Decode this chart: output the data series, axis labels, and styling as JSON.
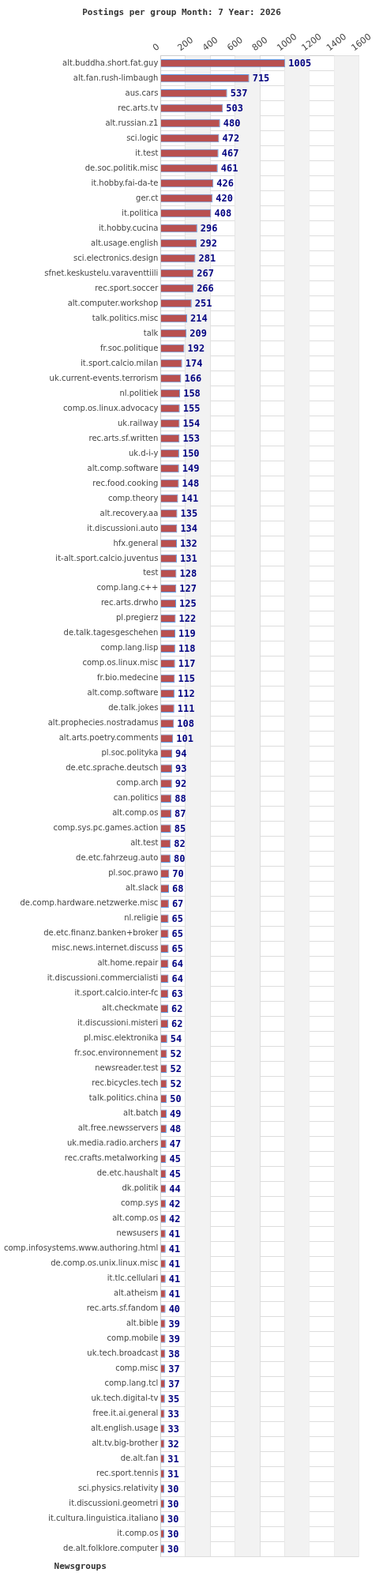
{
  "chart_data": {
    "type": "bar",
    "orientation": "horizontal",
    "title": "Postings per group Month: 7 Year: 2026",
    "ylabel": "Newsgroups",
    "categories": [
      "alt.buddha.short.fat.guy",
      "alt.fan.rush-limbaugh",
      "aus.cars",
      "rec.arts.tv",
      "alt.russian.z1",
      "sci.logic",
      "it.test",
      "de.soc.politik.misc",
      "it.hobby.fai-da-te",
      "ger.ct",
      "it.politica",
      "it.hobby.cucina",
      "alt.usage.english",
      "sci.electronics.design",
      "sfnet.keskustelu.varaventtiili",
      "rec.sport.soccer",
      "alt.computer.workshop",
      "talk.politics.misc",
      "talk",
      "fr.soc.politique",
      "it.sport.calcio.milan",
      "uk.current-events.terrorism",
      "nl.politiek",
      "comp.os.linux.advocacy",
      "uk.railway",
      "rec.arts.sf.written",
      "uk.d-i-y",
      "alt.comp.software",
      "rec.food.cooking",
      "comp.theory",
      "alt.recovery.aa",
      "it.discussioni.auto",
      "hfx.general",
      "it-alt.sport.calcio.juventus",
      "test",
      "comp.lang.c++",
      "rec.arts.drwho",
      "pl.pregierz",
      "de.talk.tagesgeschehen",
      "comp.lang.lisp",
      "comp.os.linux.misc",
      "fr.bio.medecine",
      "alt.comp.software",
      "de.talk.jokes",
      "alt.prophecies.nostradamus",
      "alt.arts.poetry.comments",
      "pl.soc.polityka",
      "de.etc.sprache.deutsch",
      "comp.arch",
      "can.politics",
      "alt.comp.os",
      "comp.sys.pc.games.action",
      "alt.test",
      "de.etc.fahrzeug.auto",
      "pl.soc.prawo",
      "alt.slack",
      "de.comp.hardware.netzwerke.misc",
      "nl.religie",
      "de.etc.finanz.banken+broker",
      "misc.news.internet.discuss",
      "alt.home.repair",
      "it.discussioni.commercialisti",
      "it.sport.calcio.inter-fc",
      "alt.checkmate",
      "it.discussioni.misteri",
      "pl.misc.elektronika",
      "fr.soc.environnement",
      "newsreader.test",
      "rec.bicycles.tech",
      "talk.politics.china",
      "alt.batch",
      "alt.free.newsservers",
      "uk.media.radio.archers",
      "rec.crafts.metalworking",
      "de.etc.haushalt",
      "dk.politik",
      "comp.sys",
      "alt.comp.os",
      "newsusers",
      "comp.infosystems.www.authoring.html",
      "de.comp.os.unix.linux.misc",
      "it.tlc.cellulari",
      "alt.atheism",
      "rec.arts.sf.fandom",
      "alt.bible",
      "comp.mobile",
      "uk.tech.broadcast",
      "comp.misc",
      "comp.lang.tcl",
      "uk.tech.digital-tv",
      "free.it.ai.general",
      "alt.english.usage",
      "alt.tv.big-brother",
      "de.alt.fan",
      "rec.sport.tennis",
      "sci.physics.relativity",
      "it.discussioni.geometri",
      "it.cultura.linguistica.italiano",
      "it.comp.os",
      "de.alt.folklore.computer"
    ],
    "values": [
      1005,
      715,
      537,
      503,
      480,
      472,
      467,
      461,
      426,
      420,
      408,
      296,
      292,
      281,
      267,
      266,
      251,
      214,
      209,
      192,
      174,
      166,
      158,
      155,
      154,
      153,
      150,
      149,
      148,
      141,
      135,
      134,
      132,
      131,
      128,
      127,
      125,
      122,
      119,
      118,
      117,
      115,
      112,
      111,
      108,
      101,
      94,
      93,
      92,
      88,
      87,
      85,
      82,
      80,
      70,
      68,
      67,
      65,
      65,
      65,
      64,
      64,
      63,
      62,
      62,
      54,
      52,
      52,
      52,
      50,
      49,
      48,
      47,
      45,
      45,
      44,
      42,
      42,
      41,
      41,
      41,
      41,
      41,
      40,
      39,
      39,
      38,
      37,
      37,
      35,
      33,
      33,
      32,
      31,
      31,
      30,
      30,
      30,
      30,
      30
    ],
    "color": "#b85050",
    "xlim": [
      0,
      1600
    ],
    "xticks": [
      0,
      200,
      400,
      600,
      800,
      1000,
      1200,
      1400,
      1600
    ],
    "grid": true,
    "data_labels": true
  }
}
